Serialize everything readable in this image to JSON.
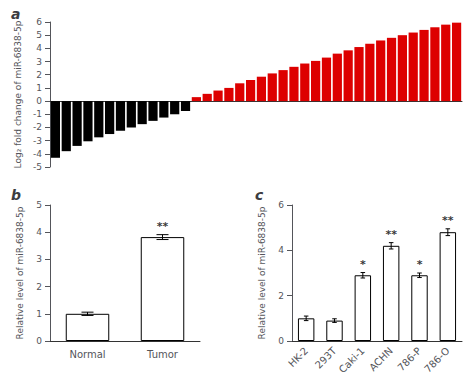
{
  "chart_data": [
    {
      "type": "bar",
      "title": "a",
      "values": [
        -4.3,
        -3.8,
        -3.4,
        -3.05,
        -2.75,
        -2.5,
        -2.25,
        -2.0,
        -1.75,
        -1.5,
        -1.25,
        -1.0,
        -0.75,
        0.3,
        0.55,
        0.8,
        1.0,
        1.35,
        1.6,
        1.85,
        2.1,
        2.35,
        2.6,
        2.85,
        3.05,
        3.3,
        3.6,
        3.85,
        4.1,
        4.35,
        4.6,
        4.8,
        5.0,
        5.2,
        5.4,
        5.6,
        5.8,
        5.95
      ],
      "colors": [
        "#000000",
        "#000000",
        "#000000",
        "#000000",
        "#000000",
        "#000000",
        "#000000",
        "#000000",
        "#000000",
        "#000000",
        "#000000",
        "#000000",
        "#000000",
        "#dd0000",
        "#dd0000",
        "#dd0000",
        "#dd0000",
        "#dd0000",
        "#dd0000",
        "#dd0000",
        "#dd0000",
        "#dd0000",
        "#dd0000",
        "#dd0000",
        "#dd0000",
        "#dd0000",
        "#dd0000",
        "#dd0000",
        "#dd0000",
        "#dd0000",
        "#dd0000",
        "#dd0000",
        "#dd0000",
        "#dd0000",
        "#dd0000",
        "#dd0000",
        "#dd0000",
        "#dd0000"
      ],
      "ylabel": "Log₂ fold change of miR-6838-5p",
      "ylim": [
        -5,
        6
      ],
      "yticks": [
        -5,
        -4,
        -3,
        -2,
        -1,
        0,
        1,
        2,
        3,
        4,
        5,
        6
      ],
      "tick_labels": "y",
      "grid": false
    },
    {
      "type": "bar",
      "title": "b",
      "categories": [
        "Normal",
        "Tumor"
      ],
      "values": [
        1.0,
        3.82
      ],
      "errors": [
        0.06,
        0.09
      ],
      "annotations": [
        null,
        "**"
      ],
      "color": "#ffffff",
      "ylabel": "Relative level of miR-6838-5p",
      "ylim": [
        0,
        5
      ],
      "yticks": [
        0,
        1,
        2,
        3,
        4,
        5
      ],
      "grid": false
    },
    {
      "type": "bar",
      "title": "c",
      "categories": [
        "HK-2",
        "293T",
        "Caki-1",
        "ACHN",
        "786-P",
        "786-O"
      ],
      "values": [
        1.0,
        0.9,
        2.9,
        4.2,
        2.9,
        4.8
      ],
      "errors": [
        0.1,
        0.08,
        0.12,
        0.14,
        0.1,
        0.15
      ],
      "annotations": [
        null,
        null,
        "*",
        "**",
        "*",
        "**"
      ],
      "color": "#ffffff",
      "ylabel": "Relative level of miR-6838-5p",
      "ylim": [
        0,
        6
      ],
      "yticks": [
        0,
        2,
        4,
        6
      ],
      "grid": false
    }
  ]
}
